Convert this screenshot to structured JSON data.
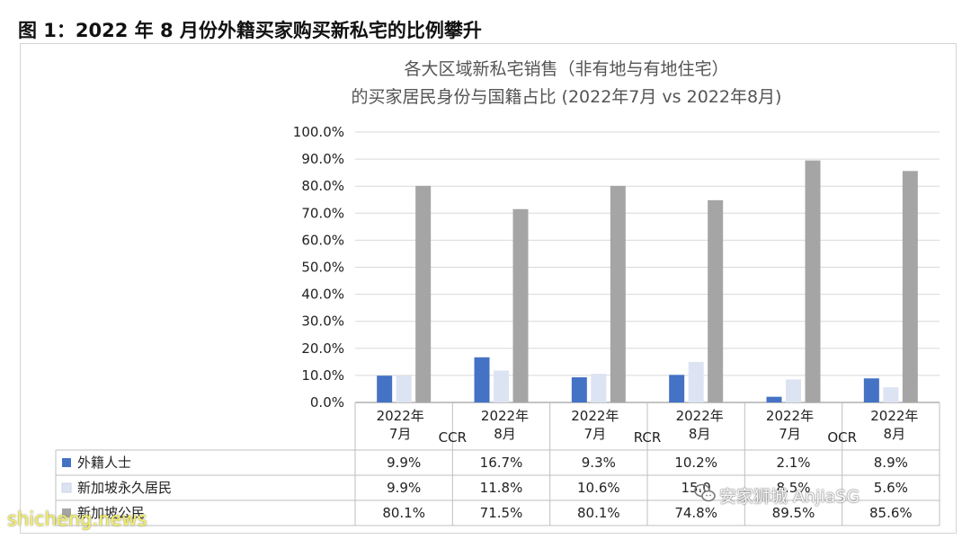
{
  "figure_heading": "图 1：2022 年 8 月份外籍买家购买新私宅的比例攀升",
  "chart_data": {
    "type": "bar",
    "title_lines": [
      "各大区域新私宅销售（非有地与有地住宅）",
      "的买家居民身份与国籍占比 (2022年7月 vs 2022年8月)"
    ],
    "ylim": [
      0,
      100
    ],
    "y_ticks": [
      "0.0%",
      "10.0%",
      "20.0%",
      "30.0%",
      "40.0%",
      "50.0%",
      "60.0%",
      "70.0%",
      "80.0%",
      "90.0%",
      "100.0%"
    ],
    "grid": true,
    "groups": [
      {
        "name": "CCR",
        "periods": [
          [
            "2022年",
            "7月"
          ],
          [
            "2022年",
            "8月"
          ]
        ]
      },
      {
        "name": "RCR",
        "periods": [
          [
            "2022年",
            "7月"
          ],
          [
            "2022年",
            "8月"
          ]
        ]
      },
      {
        "name": "OCR",
        "periods": [
          [
            "2022年",
            "7月"
          ],
          [
            "2022年",
            "8月"
          ]
        ]
      }
    ],
    "series": [
      {
        "name": "外籍人士",
        "color": "#4472C4",
        "values": [
          9.9,
          16.7,
          9.3,
          10.2,
          2.1,
          8.9
        ],
        "labels": [
          "9.9%",
          "16.7%",
          "9.3%",
          "10.2%",
          "2.1%",
          "8.9%"
        ]
      },
      {
        "name": "新加坡永久居民",
        "color": "#DCE3F2",
        "values": [
          9.9,
          11.8,
          10.6,
          15.0,
          8.5,
          5.6
        ],
        "labels": [
          "9.9%",
          "11.8%",
          "10.6%",
          "15.0",
          "8.5%",
          "5.6%"
        ]
      },
      {
        "name": "新加坡公民",
        "color": "#A5A5A5",
        "values": [
          80.1,
          71.5,
          80.1,
          74.8,
          89.5,
          85.6
        ],
        "labels": [
          "80.1%",
          "71.5%",
          "80.1%",
          "74.8%",
          "89.5%",
          "85.6%"
        ]
      }
    ]
  },
  "watermarks": {
    "brand": "安家狮城 AnjiaSG",
    "site": "shicheng.news"
  }
}
